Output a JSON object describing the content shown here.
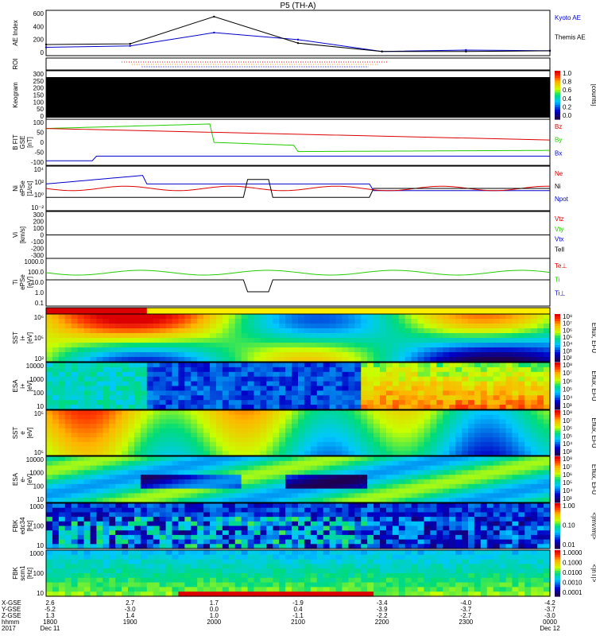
{
  "title": "P5 (TH-A)",
  "colors": {
    "blue": "#0000cc",
    "red": "#dd0000",
    "green": "#22cc00",
    "black": "#000000"
  },
  "panels": [
    {
      "id": "ae",
      "ylabel": [
        "AE Index"
      ],
      "ticks": [
        "600",
        "400",
        "200",
        "0"
      ],
      "right": [
        {
          "text": "Kyoto AE",
          "color": "#0000cc"
        },
        {
          "text": "Themis AE",
          "color": "#000000"
        }
      ]
    },
    {
      "id": "roi",
      "ylabel": [
        "ROI"
      ],
      "ticks": [],
      "right": []
    },
    {
      "id": "keogram",
      "ylabel": [
        "Keogram"
      ],
      "ticks": [
        "300",
        "250",
        "200",
        "150",
        "100",
        "50",
        "0"
      ],
      "right": []
    },
    {
      "id": "bfgm",
      "ylabel": [
        "B FIT",
        "GSE",
        "[nT]"
      ],
      "ticks": [
        "100",
        "50",
        "0",
        "-50",
        "-100"
      ],
      "right": [
        {
          "text": "Bz",
          "color": "#dd0000"
        },
        {
          "text": "By",
          "color": "#22cc00"
        },
        {
          "text": "Bx",
          "color": "#0000cc"
        }
      ]
    },
    {
      "id": "ni",
      "ylabel": [
        "Ni",
        "ePSe",
        "[1/cc]"
      ],
      "ticks": [
        "10⁴",
        "10²",
        "10⁰",
        "10⁻²"
      ],
      "right": [
        {
          "text": "Ne",
          "color": "#dd0000"
        },
        {
          "text": "Ni",
          "color": "#000000"
        },
        {
          "text": "Npot",
          "color": "#0000cc"
        }
      ]
    },
    {
      "id": "vi",
      "ylabel": [
        "Vi",
        "[km/s]"
      ],
      "ticks": [
        "300",
        "200",
        "100",
        "0",
        "-100",
        "-200",
        "-300"
      ],
      "right": [
        {
          "text": "Vtz",
          "color": "#dd0000"
        },
        {
          "text": "Vty",
          "color": "#22cc00"
        },
        {
          "text": "Vtx",
          "color": "#0000cc"
        },
        {
          "text": "Tell",
          "color": "#000000"
        }
      ]
    },
    {
      "id": "ti",
      "ylabel": [
        "Ti",
        "ePSe",
        "[eV]"
      ],
      "ticks": [
        "1000.0",
        "100.0",
        "10.0",
        "1.0",
        "0.1"
      ],
      "right": [
        {
          "text": "Te⊥",
          "color": "#dd0000"
        },
        {
          "text": "Ti",
          "color": "#22cc00"
        },
        {
          "text": "Ti⊥",
          "color": "#0000cc"
        }
      ]
    },
    {
      "id": "mode",
      "ylabel": [],
      "ticks": [],
      "right": []
    },
    {
      "id": "sst_i",
      "ylabel": [
        "SST",
        "i+",
        "[eV]"
      ],
      "ticks": [
        "10⁶",
        "10⁵",
        "10²"
      ],
      "right": [],
      "spec": "sst_i"
    },
    {
      "id": "esa_i",
      "ylabel": [
        "ESA",
        "i+",
        "[eV]"
      ],
      "ticks": [
        "10000",
        "1000",
        "100",
        "10"
      ],
      "right": [],
      "spec": "esa_i"
    },
    {
      "id": "sst_e",
      "ylabel": [
        "SST",
        "e",
        "[eV]"
      ],
      "ticks": [
        "10⁵",
        "10⁵"
      ],
      "right": [],
      "spec": "sst_e"
    },
    {
      "id": "esa_e",
      "ylabel": [
        "ESA",
        "e-",
        "[eV]"
      ],
      "ticks": [
        "10000",
        "1000",
        "100",
        "10"
      ],
      "right": [],
      "spec": "esa_e"
    },
    {
      "id": "fbk_e",
      "ylabel": [
        "FBK",
        "edc34",
        "[Hz]"
      ],
      "ticks": [
        "1000",
        "100",
        "10"
      ],
      "right": [],
      "spec": "fbk_e"
    },
    {
      "id": "fbk_b",
      "ylabel": [
        "FBK",
        "scm1",
        "[Hz]"
      ],
      "ticks": [
        "1000",
        "100",
        "10"
      ],
      "right": [],
      "spec": "fbk_b"
    }
  ],
  "colorbars": [
    {
      "id": "cb_keo",
      "ticks": [
        "1.0",
        "0.8",
        "0.6",
        "0.4",
        "0.2",
        "0.0"
      ],
      "label": "[counts]"
    },
    {
      "id": "cb_sst_i",
      "ticks": [
        "10⁸",
        "10⁷",
        "10⁶",
        "10⁵",
        "10⁴",
        "10³",
        "10²"
      ],
      "label": "Eflux, EFU"
    },
    {
      "id": "cb_esa_i",
      "ticks": [
        "10⁸",
        "10⁷",
        "10⁶",
        "10⁵",
        "10⁴",
        "10³"
      ],
      "label": "Eflux, EFU"
    },
    {
      "id": "cb_sst_e",
      "ticks": [
        "10⁸",
        "10⁷",
        "10⁶",
        "10⁵",
        "10⁴",
        "10³"
      ],
      "label": "Eflux, EFU"
    },
    {
      "id": "cb_esa_e",
      "ticks": [
        "10⁸",
        "10⁷",
        "10⁶",
        "10⁵",
        "10⁴",
        "10³"
      ],
      "label": "Eflux, EFU"
    },
    {
      "id": "cb_fbk_e",
      "ticks": [
        "1.00",
        "0.10",
        "0.01"
      ],
      "label": "<|mV/m|>"
    },
    {
      "id": "cb_fbk_b",
      "ticks": [
        "1.0000",
        "0.1000",
        "0.0100",
        "0.0010",
        "0.0001"
      ],
      "label": "<|nT|>"
    }
  ],
  "xaxis": {
    "rowlabels": [
      "X-GSE",
      "Y-GSE",
      "Z-GSE",
      "hhmm",
      "2017"
    ],
    "columns": [
      {
        "vals": [
          "2.6",
          "-5.2",
          "1.3",
          "1800",
          "Dec 11"
        ]
      },
      {
        "vals": [
          "2.7",
          "-3.0",
          "1.4",
          "1900",
          ""
        ]
      },
      {
        "vals": [
          "1.7",
          "0.0",
          "1.0",
          "2000",
          ""
        ]
      },
      {
        "vals": [
          "-1.9",
          "0.4",
          "-1.1",
          "2100",
          ""
        ]
      },
      {
        "vals": [
          "-3.4",
          "-3.9",
          "-2.2",
          "2200",
          ""
        ]
      },
      {
        "vals": [
          "-4.0",
          "-3.7",
          "-2.7",
          "2300",
          ""
        ]
      },
      {
        "vals": [
          "-4.2",
          "-3.7",
          "-3.0",
          "0000",
          "Dec 12"
        ]
      }
    ]
  },
  "chart_data": {
    "type": "line",
    "title": "P5 (TH-A)",
    "x": [
      "1800",
      "1900",
      "2000",
      "2100",
      "2200",
      "2300",
      "0000"
    ],
    "series": [
      {
        "name": "Kyoto AE",
        "values": [
          120,
          140,
          330,
          230,
          60,
          80,
          70
        ]
      },
      {
        "name": "Themis AE",
        "values": [
          160,
          170,
          560,
          180,
          60,
          60,
          70
        ]
      }
    ],
    "ylim": [
      0,
      650
    ]
  }
}
